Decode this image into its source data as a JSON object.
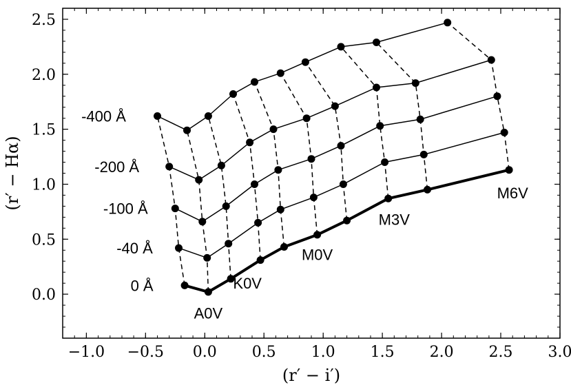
{
  "chart_data": {
    "type": "line",
    "title": "",
    "xlabel": "(r′ − i′)",
    "ylabel": "(r′ − Hα)",
    "xlim": [
      -1.2,
      3.0
    ],
    "ylim": [
      -0.4,
      2.6
    ],
    "xticks": [
      -1.0,
      -0.5,
      0.0,
      0.5,
      1.0,
      1.5,
      2.0,
      2.5,
      3.0
    ],
    "xtick_labels": [
      "−1.0",
      "−0.5",
      "0.0",
      "0.5",
      "1.0",
      "1.5",
      "2.0",
      "2.5",
      "3.0"
    ],
    "yticks": [
      0.0,
      0.5,
      1.0,
      1.5,
      2.0,
      2.5
    ],
    "ytick_labels": [
      "0.0",
      "0.5",
      "1.0",
      "1.5",
      "2.0",
      "2.5"
    ],
    "grid": false,
    "colors": {
      "line": "#000000",
      "background": "#ffffff"
    },
    "series": [
      {
        "name": "0 Å",
        "label": "0 Å",
        "line_weight": "thick",
        "x": [
          -0.17,
          0.03,
          0.22,
          0.47,
          0.67,
          0.95,
          1.2,
          1.55,
          1.88,
          2.57
        ],
        "y": [
          0.08,
          0.02,
          0.14,
          0.31,
          0.43,
          0.54,
          0.67,
          0.87,
          0.95,
          1.13
        ]
      },
      {
        "name": "-40 Å",
        "label": "-40 Å",
        "line_weight": "thin",
        "x": [
          -0.22,
          0.02,
          0.2,
          0.45,
          0.64,
          0.92,
          1.17,
          1.52,
          1.85,
          2.53
        ],
        "y": [
          0.42,
          0.33,
          0.46,
          0.65,
          0.77,
          0.88,
          1.0,
          1.2,
          1.27,
          1.47
        ]
      },
      {
        "name": "-100 Å",
        "label": "-100 Å",
        "line_weight": "thin",
        "x": [
          -0.25,
          -0.02,
          0.18,
          0.42,
          0.62,
          0.9,
          1.15,
          1.48,
          1.82,
          2.47
        ],
        "y": [
          0.78,
          0.66,
          0.8,
          1.0,
          1.13,
          1.23,
          1.35,
          1.53,
          1.59,
          1.8
        ]
      },
      {
        "name": "-200 Å",
        "label": "-200 Å",
        "line_weight": "thin",
        "x": [
          -0.3,
          -0.05,
          0.14,
          0.38,
          0.58,
          0.86,
          1.1,
          1.45,
          1.78,
          2.42
        ],
        "y": [
          1.16,
          1.04,
          1.17,
          1.38,
          1.5,
          1.6,
          1.71,
          1.88,
          1.92,
          2.13
        ]
      },
      {
        "name": "-400 Å",
        "label": "-400 Å",
        "line_weight": "thin",
        "x": [
          -0.4,
          -0.15,
          0.03,
          0.24,
          0.42,
          0.64,
          0.85,
          1.15,
          1.45,
          2.05
        ],
        "y": [
          1.62,
          1.49,
          1.62,
          1.82,
          1.93,
          2.01,
          2.11,
          2.25,
          2.29,
          2.47
        ]
      }
    ],
    "annotations": [
      {
        "text": "A0V",
        "x": 0.03,
        "y": -0.17
      },
      {
        "text": "K0V",
        "x": 0.36,
        "y": 0.1
      },
      {
        "text": "M0V",
        "x": 0.95,
        "y": 0.36
      },
      {
        "text": "M3V",
        "x": 1.6,
        "y": 0.68
      },
      {
        "text": "M6V",
        "x": 2.6,
        "y": 0.92
      }
    ]
  }
}
